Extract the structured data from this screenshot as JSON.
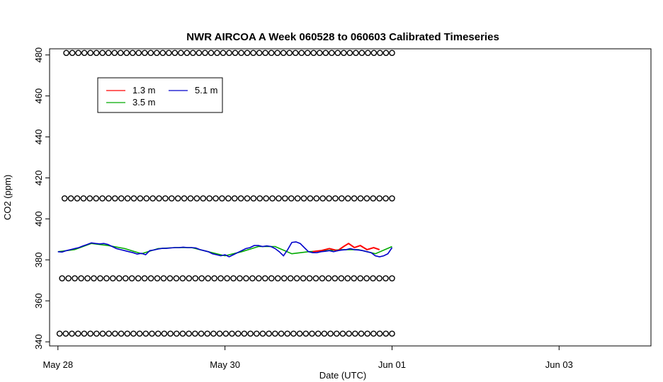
{
  "chart_data": {
    "type": "line",
    "title": "NWR AIRCOA A  Week 060528 to 060603  Calibrated Timeseries",
    "xlabel": "Date (UTC)",
    "ylabel": "CO2 (ppm)",
    "xlim": [
      -0.1,
      7.1
    ],
    "ylim": [
      338,
      483
    ],
    "x_unit": "days since May 28 00:00 UTC",
    "x_ticks": [
      {
        "value": 0,
        "label": "May 28"
      },
      {
        "value": 2,
        "label": "May 30"
      },
      {
        "value": 4,
        "label": "Jun 01"
      },
      {
        "value": 6,
        "label": "Jun 03"
      }
    ],
    "y_ticks": [
      340,
      360,
      380,
      400,
      420,
      440,
      460,
      480
    ],
    "legend_position": "top-left",
    "series": [
      {
        "name": "1.3 m",
        "color": "#ff0000",
        "x": [
          3.05,
          3.15,
          3.25,
          3.35,
          3.42,
          3.48,
          3.55,
          3.62,
          3.7,
          3.78,
          3.85
        ],
        "y": [
          384.0,
          384.5,
          385.5,
          384.5,
          386.5,
          388.0,
          386.0,
          387.0,
          385.0,
          386.0,
          385.0
        ]
      },
      {
        "name": "3.5 m",
        "color": "#00aa00",
        "x": [
          0.0,
          0.2,
          0.4,
          0.6,
          0.8,
          1.0,
          1.2,
          1.4,
          1.6,
          1.8,
          2.0,
          2.2,
          2.4,
          2.6,
          2.8,
          3.0,
          3.2,
          3.4,
          3.6,
          3.8,
          4.0
        ],
        "y": [
          384.0,
          385.0,
          388.0,
          387.0,
          385.5,
          383.0,
          385.5,
          386.0,
          386.0,
          384.0,
          382.0,
          384.0,
          386.5,
          386.5,
          383.0,
          384.0,
          384.5,
          385.0,
          385.0,
          383.0,
          386.5
        ]
      },
      {
        "name": "5.1 m",
        "color": "#0000cc",
        "x": [
          0.0,
          0.05,
          0.1,
          0.15,
          0.2,
          0.25,
          0.3,
          0.35,
          0.4,
          0.45,
          0.5,
          0.55,
          0.6,
          0.65,
          0.7,
          0.75,
          0.8,
          0.85,
          0.9,
          0.95,
          1.0,
          1.05,
          1.1,
          1.15,
          1.2,
          1.25,
          1.3,
          1.35,
          1.4,
          1.45,
          1.5,
          1.55,
          1.6,
          1.65,
          1.7,
          1.75,
          1.8,
          1.85,
          1.9,
          1.95,
          2.0,
          2.05,
          2.1,
          2.15,
          2.2,
          2.25,
          2.3,
          2.35,
          2.4,
          2.45,
          2.5,
          2.55,
          2.6,
          2.65,
          2.7,
          2.75,
          2.8,
          2.85,
          2.9,
          2.95,
          3.0,
          3.05,
          3.1,
          3.15,
          3.2,
          3.25,
          3.3,
          3.35,
          3.4,
          3.45,
          3.5,
          3.55,
          3.6,
          3.65,
          3.7,
          3.75,
          3.8,
          3.85,
          3.9,
          3.95,
          4.0
        ],
        "y": [
          384.0,
          383.8,
          384.5,
          385.0,
          385.5,
          386.0,
          386.8,
          387.5,
          388.3,
          388.0,
          387.8,
          388.0,
          387.5,
          386.5,
          385.5,
          385.0,
          384.5,
          384.0,
          383.5,
          382.8,
          383.2,
          382.5,
          384.5,
          384.8,
          385.3,
          385.6,
          385.6,
          385.8,
          386.0,
          386.0,
          386.2,
          386.0,
          386.0,
          385.8,
          385.0,
          384.5,
          384.0,
          383.0,
          382.5,
          382.0,
          382.5,
          381.5,
          382.5,
          383.5,
          384.5,
          385.5,
          386.0,
          387.0,
          387.0,
          386.5,
          386.8,
          386.5,
          385.5,
          384.0,
          382.0,
          385.0,
          388.5,
          388.8,
          388.0,
          386.0,
          384.0,
          383.5,
          383.5,
          384.0,
          384.2,
          384.5,
          384.0,
          384.5,
          384.8,
          385.0,
          385.5,
          385.0,
          384.8,
          384.5,
          384.0,
          383.5,
          382.0,
          381.5,
          382.0,
          383.0,
          386.0
        ]
      }
    ],
    "marker_series": [
      {
        "label": "O",
        "y": 481,
        "x_start": 0.1,
        "x_end": 4.0,
        "count": 55
      },
      {
        "label": "O",
        "y": 410,
        "x_start": 0.08,
        "x_end": 4.0,
        "count": 53
      },
      {
        "label": "O",
        "y": 371,
        "x_start": 0.05,
        "x_end": 4.0,
        "count": 53
      },
      {
        "label": "O",
        "y": 344,
        "x_start": 0.02,
        "x_end": 4.0,
        "count": 55
      }
    ]
  }
}
